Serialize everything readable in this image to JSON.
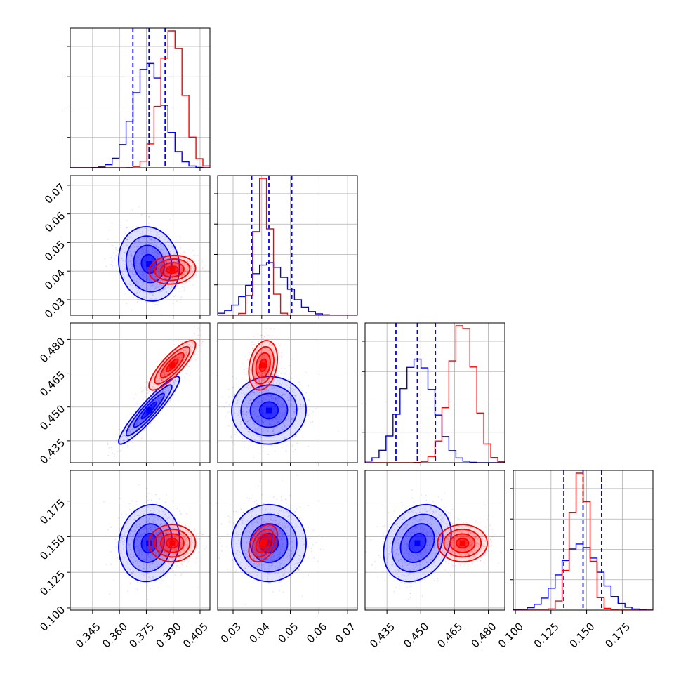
{
  "chart_data": {
    "type": "corner",
    "title": "",
    "parameters": [
      {
        "range": [
          0.3325,
          0.4105
        ],
        "ticks": [
          "0.345",
          "0.360",
          "0.375",
          "0.390",
          "0.405"
        ],
        "tick_values": [
          0.345,
          0.36,
          0.375,
          0.39,
          0.405
        ]
      },
      {
        "range": [
          0.0246,
          0.0734
        ],
        "ticks": [
          "0.03",
          "0.04",
          "0.05",
          "0.06",
          "0.07"
        ],
        "tick_values": [
          0.03,
          0.04,
          0.05,
          0.06,
          0.07
        ]
      },
      {
        "range": [
          0.4253,
          0.4873
        ],
        "ticks": [
          "0.435",
          "0.450",
          "0.465",
          "0.480"
        ],
        "tick_values": [
          0.435,
          0.45,
          0.465,
          0.48
        ]
      },
      {
        "range": [
          0.0985,
          0.1965
        ],
        "ticks": [
          "0.100",
          "0.125",
          "0.150",
          "0.175"
        ],
        "tick_values": [
          0.1,
          0.125,
          0.15,
          0.175
        ]
      }
    ],
    "series": [
      {
        "color": "#0000ff",
        "means": [
          0.3765,
          0.0425,
          0.4485,
          0.1455
        ],
        "sds": [
          0.0085,
          0.0065,
          0.0075,
          0.0135
        ],
        "corr": [
          [
            1,
            -0.1,
            0.93,
            0.1
          ],
          [
            -0.1,
            1,
            0.02,
            0.0
          ],
          [
            0.93,
            0.02,
            1,
            0.25
          ],
          [
            0.1,
            0.0,
            0.25,
            1
          ]
        ],
        "quantiles": [
          [
            0.3675,
            0.3765,
            0.3855
          ],
          [
            0.0365,
            0.0425,
            0.0505
          ],
          [
            0.439,
            0.4485,
            0.4565
          ],
          [
            0.134,
            0.1475,
            0.1605
          ]
        ]
      },
      {
        "color": "#ff0000",
        "means": [
          0.3895,
          0.0405,
          0.4685,
          0.1455
        ],
        "sds": [
          0.0065,
          0.0025,
          0.0055,
          0.0065
        ],
        "corr": [
          [
            1,
            0.1,
            0.83,
            0.0
          ],
          [
            0.1,
            1,
            0.25,
            0.4
          ],
          [
            0.83,
            0.25,
            1,
            0.0
          ],
          [
            0.0,
            0.4,
            0.0,
            1
          ]
        ]
      }
    ],
    "grid": true
  }
}
